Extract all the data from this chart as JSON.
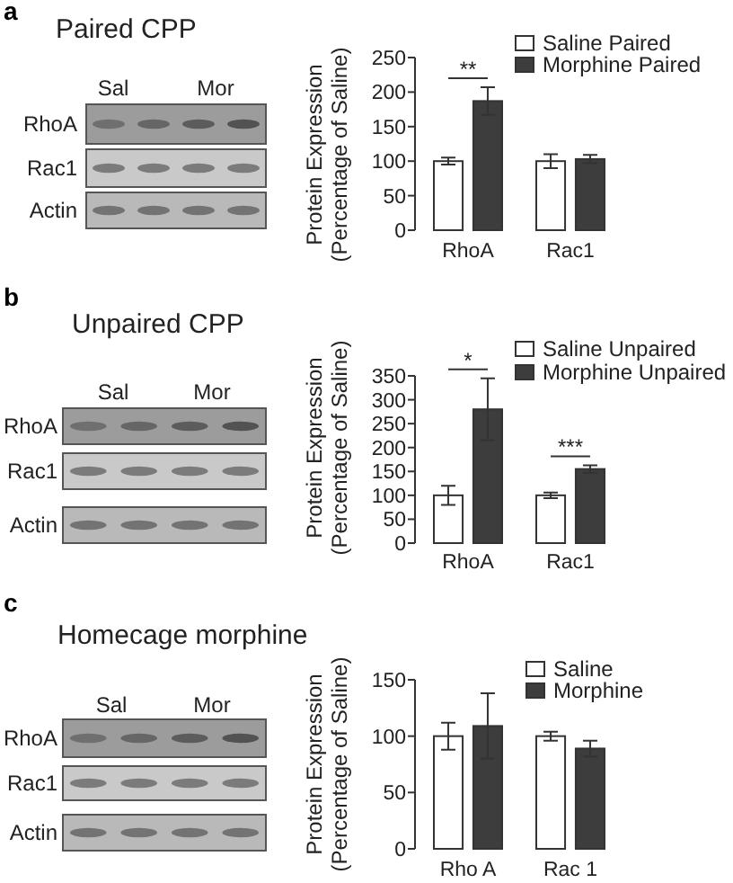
{
  "chart_data": [
    {
      "type": "bar",
      "ylabel": "Protein Expression\n(Percentage of Saline)",
      "categories": [
        "RhoA",
        "Rac1"
      ],
      "series": [
        {
          "name": "Saline Paired",
          "color": "#ffffff",
          "values": [
            100,
            100
          ],
          "errors": [
            5,
            10
          ]
        },
        {
          "name": "Morphine Paired",
          "color": "#3d3d3d",
          "values": [
            187,
            103
          ],
          "errors": [
            20,
            6
          ]
        }
      ],
      "ylim": [
        0,
        250
      ],
      "yticks": [
        0,
        50,
        100,
        150,
        200,
        250
      ],
      "legend": "top right",
      "annotations": [
        "a",
        "Paired CPP",
        "Sal",
        "Mor",
        "RhoA",
        "Rac1",
        "Actin",
        "**"
      ]
    },
    {
      "type": "bar",
      "ylabel": "Protein Expression\n(Percentage of Saline)",
      "categories": [
        "RhoA",
        "Rac1"
      ],
      "series": [
        {
          "name": "Saline Unpaired",
          "color": "#ffffff",
          "values": [
            100,
            100
          ],
          "errors": [
            20,
            6
          ]
        },
        {
          "name": "Morphine Unpaired",
          "color": "#3d3d3d",
          "values": [
            280,
            155
          ],
          "errors": [
            65,
            8
          ]
        }
      ],
      "ylim": [
        0,
        350
      ],
      "yticks": [
        0,
        50,
        100,
        150,
        200,
        250,
        300,
        350
      ],
      "legend": "top right",
      "annotations": [
        "b",
        "Unpaired CPP",
        "Sal",
        "Mor",
        "RhoA",
        "Rac1",
        "Actin",
        "*",
        "***"
      ]
    },
    {
      "type": "bar",
      "ylabel": "Protein Expression\n(Percentage of Saline)",
      "categories": [
        "Rho A",
        "Rac 1"
      ],
      "series": [
        {
          "name": "Saline",
          "color": "#ffffff",
          "values": [
            100,
            100
          ],
          "errors": [
            12,
            4
          ]
        },
        {
          "name": "Morphine",
          "color": "#3d3d3d",
          "values": [
            109,
            89
          ],
          "errors": [
            29,
            7
          ]
        }
      ],
      "ylim": [
        0,
        150
      ],
      "yticks": [
        0,
        50,
        100,
        150
      ],
      "legend": "top right",
      "annotations": [
        "c",
        "Homecage morphine",
        "Sal",
        "Mor",
        "RhoA",
        "Rac1",
        "Actin"
      ]
    }
  ]
}
